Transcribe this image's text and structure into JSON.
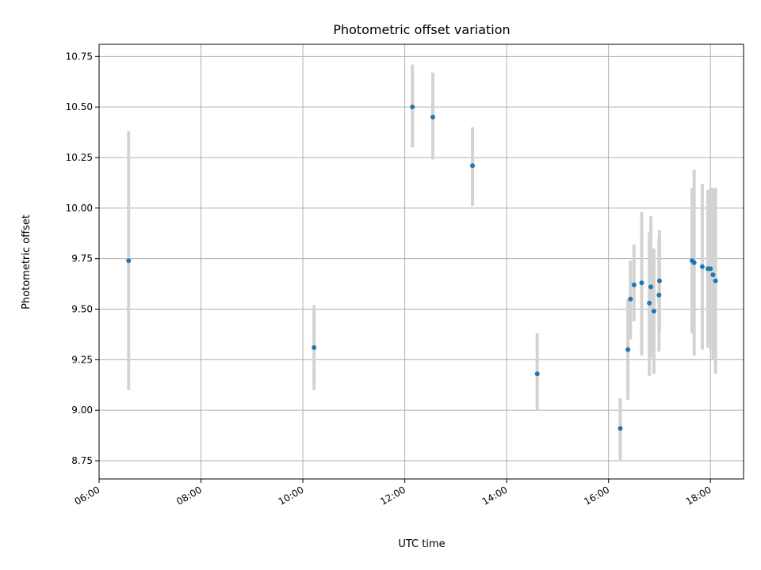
{
  "chart_data": {
    "type": "scatter",
    "title": "Photometric offset variation",
    "xlabel": "UTC time",
    "ylabel": "Photometric offset",
    "x_unit": "hours (UTC)",
    "xlim": [
      6.0,
      18.65
    ],
    "ylim": [
      8.66,
      10.81
    ],
    "x_ticks": [
      {
        "value": 6,
        "label": "06:00"
      },
      {
        "value": 8,
        "label": "08:00"
      },
      {
        "value": 10,
        "label": "10:00"
      },
      {
        "value": 12,
        "label": "12:00"
      },
      {
        "value": 14,
        "label": "14:00"
      },
      {
        "value": 16,
        "label": "16:00"
      },
      {
        "value": 18,
        "label": "18:00"
      }
    ],
    "y_ticks": [
      {
        "value": 8.75,
        "label": "8.75"
      },
      {
        "value": 9.0,
        "label": "9.00"
      },
      {
        "value": 9.25,
        "label": "9.25"
      },
      {
        "value": 9.5,
        "label": "9.50"
      },
      {
        "value": 9.75,
        "label": "9.75"
      },
      {
        "value": 10.0,
        "label": "10.00"
      },
      {
        "value": 10.25,
        "label": "10.25"
      },
      {
        "value": 10.5,
        "label": "10.50"
      },
      {
        "value": 10.75,
        "label": "10.75"
      }
    ],
    "grid": true,
    "colors": {
      "point": "#1f77b4",
      "errorbar": "#d3d3d3",
      "grid": "#b0b0b0"
    },
    "points": [
      {
        "x": 6.58,
        "y": 9.74,
        "lo": 9.1,
        "hi": 10.38
      },
      {
        "x": 10.22,
        "y": 9.31,
        "lo": 9.1,
        "hi": 9.52
      },
      {
        "x": 12.15,
        "y": 10.5,
        "lo": 10.3,
        "hi": 10.71
      },
      {
        "x": 12.55,
        "y": 10.45,
        "lo": 10.24,
        "hi": 10.67
      },
      {
        "x": 13.33,
        "y": 10.21,
        "lo": 10.01,
        "hi": 10.4
      },
      {
        "x": 14.6,
        "y": 9.18,
        "lo": 9.0,
        "hi": 9.38
      },
      {
        "x": 16.23,
        "y": 8.91,
        "lo": 8.75,
        "hi": 9.06
      },
      {
        "x": 16.38,
        "y": 9.3,
        "lo": 9.05,
        "hi": 9.55
      },
      {
        "x": 16.43,
        "y": 9.55,
        "lo": 9.35,
        "hi": 9.74
      },
      {
        "x": 16.5,
        "y": 9.62,
        "lo": 9.44,
        "hi": 9.82
      },
      {
        "x": 16.65,
        "y": 9.63,
        "lo": 9.27,
        "hi": 9.98
      },
      {
        "x": 16.8,
        "y": 9.53,
        "lo": 9.17,
        "hi": 9.88
      },
      {
        "x": 16.83,
        "y": 9.61,
        "lo": 9.26,
        "hi": 9.96
      },
      {
        "x": 16.89,
        "y": 9.49,
        "lo": 9.18,
        "hi": 9.8
      },
      {
        "x": 16.99,
        "y": 9.57,
        "lo": 9.29,
        "hi": 9.85
      },
      {
        "x": 17.0,
        "y": 9.64,
        "lo": 9.39,
        "hi": 9.89
      },
      {
        "x": 17.64,
        "y": 9.74,
        "lo": 9.38,
        "hi": 10.1
      },
      {
        "x": 17.68,
        "y": 9.73,
        "lo": 9.27,
        "hi": 10.19
      },
      {
        "x": 17.84,
        "y": 9.71,
        "lo": 9.3,
        "hi": 10.12
      },
      {
        "x": 17.95,
        "y": 9.7,
        "lo": 9.31,
        "hi": 10.09
      },
      {
        "x": 18.0,
        "y": 9.7,
        "lo": 9.3,
        "hi": 10.1
      },
      {
        "x": 18.05,
        "y": 9.67,
        "lo": 9.25,
        "hi": 10.1
      },
      {
        "x": 18.1,
        "y": 9.64,
        "lo": 9.18,
        "hi": 10.1
      }
    ]
  }
}
